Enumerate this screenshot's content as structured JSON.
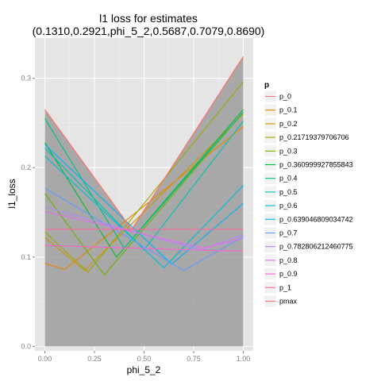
{
  "chart_data": {
    "type": "line",
    "title_line1": "l1 loss for estimates",
    "title_line2": "(0.1310,0.2921,phi_5_2,0.5687,0.7079,0.8690)",
    "xlabel": "phi_5_2",
    "ylabel": "l1_loss",
    "xlim": [
      -0.05,
      1.05
    ],
    "ylim": [
      -0.005,
      0.345
    ],
    "x_ticks": [
      0.0,
      0.25,
      0.5,
      0.75,
      1.0
    ],
    "x_tick_labels": [
      "0.00",
      "0.25",
      "0.50",
      "0.75",
      "1.00"
    ],
    "y_ticks": [
      0.0,
      0.1,
      0.2,
      0.3
    ],
    "y_tick_labels": [
      "0.0",
      "0.1",
      "0.2",
      "0.3"
    ],
    "grid": true,
    "legend_title": "p",
    "legend_position": "right",
    "background_color": "#e5e5e5",
    "grid_color": "#ffffff",
    "ribbon": {
      "color": "#999999",
      "opacity": 0.8,
      "x": [
        0.0,
        0.4379,
        1.0
      ],
      "ymin": [
        0.0,
        0.0,
        0.0
      ],
      "ymax": [
        0.265,
        0.131,
        0.3243
      ]
    },
    "series": [
      {
        "name": "p_0",
        "color": "#F8766D",
        "x": [
          0.0,
          0.4379,
          1.0
        ],
        "y": [
          0.265,
          0.131,
          0.3243
        ]
      },
      {
        "name": "p_0.1",
        "color": "#E58700",
        "x": [
          0.0,
          0.1,
          1.0
        ],
        "y": [
          0.093,
          0.086,
          0.246
        ]
      },
      {
        "name": "p_0.2",
        "color": "#C99800",
        "x": [
          0.0,
          0.2,
          1.0
        ],
        "y": [
          0.122,
          0.085,
          0.26
        ]
      },
      {
        "name": "p_0.21719379706706",
        "color": "#A3A500",
        "x": [
          0.0,
          0.2172,
          1.0
        ],
        "y": [
          0.128,
          0.083,
          0.296
        ]
      },
      {
        "name": "p_0.3",
        "color": "#6BB100",
        "x": [
          0.0,
          0.3,
          1.0
        ],
        "y": [
          0.171,
          0.08,
          0.262
        ]
      },
      {
        "name": "p_0.360999927855843",
        "color": "#00BA38",
        "x": [
          0.0,
          0.361,
          1.0
        ],
        "y": [
          0.228,
          0.1,
          0.265
        ]
      },
      {
        "name": "p_0.4",
        "color": "#00BF7D",
        "x": [
          0.0,
          0.4,
          1.0
        ],
        "y": [
          0.255,
          0.11,
          0.262
        ]
      },
      {
        "name": "p_0.5",
        "color": "#00C0AF",
        "x": [
          0.0,
          0.5,
          1.0
        ],
        "y": [
          0.222,
          0.108,
          0.252
        ]
      },
      {
        "name": "p_0.6",
        "color": "#00BCD8",
        "x": [
          0.0,
          0.6,
          1.0
        ],
        "y": [
          0.213,
          0.088,
          0.18
        ]
      },
      {
        "name": "p_0.639046809034742",
        "color": "#00B0F6",
        "x": [
          0.0,
          0.639,
          1.0
        ],
        "y": [
          0.226,
          0.092,
          0.16
        ]
      },
      {
        "name": "p_0.7",
        "color": "#619CFF",
        "x": [
          0.0,
          0.7,
          1.0
        ],
        "y": [
          0.177,
          0.085,
          0.123
        ]
      },
      {
        "name": "p_0.782806212460775",
        "color": "#B983FF",
        "x": [
          0.0,
          0.7828,
          1.0
        ],
        "y": [
          0.156,
          0.108,
          0.125
        ]
      },
      {
        "name": "p_0.8",
        "color": "#E76BF3",
        "x": [
          0.0,
          0.8,
          1.0
        ],
        "y": [
          0.151,
          0.11,
          0.121
        ]
      },
      {
        "name": "p_0.9",
        "color": "#FD61D1",
        "x": [
          0.0,
          0.9,
          1.0
        ],
        "y": [
          0.113,
          0.107,
          0.107
        ]
      },
      {
        "name": "p_1",
        "color": "#FF67A4",
        "x": [
          0.0,
          1.0
        ],
        "y": [
          0.131,
          0.131
        ]
      },
      {
        "name": "pmax",
        "color": "#F8766D",
        "x": [
          0.0,
          0.4379,
          1.0
        ],
        "y": [
          0.265,
          0.131,
          0.3243
        ]
      }
    ]
  }
}
